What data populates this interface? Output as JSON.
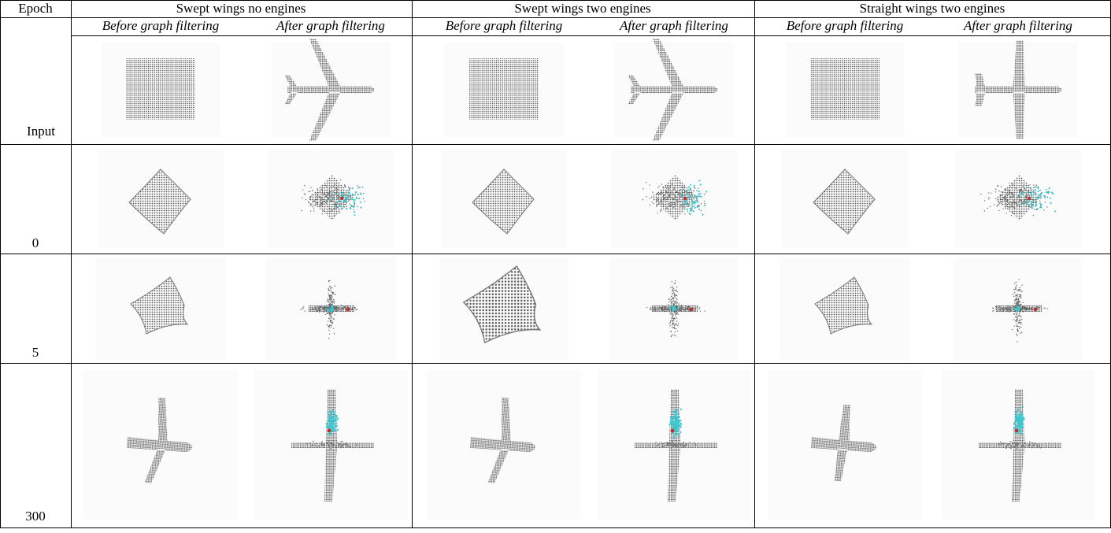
{
  "table": {
    "header": [
      "Epoch",
      "Swept wings no engines",
      "Swept wings two engines",
      "Straight wings two engines"
    ],
    "subheader": [
      "Before graph filtering",
      "After graph filtering"
    ],
    "rows": [
      "Input",
      "0",
      "5",
      "300"
    ]
  }
}
